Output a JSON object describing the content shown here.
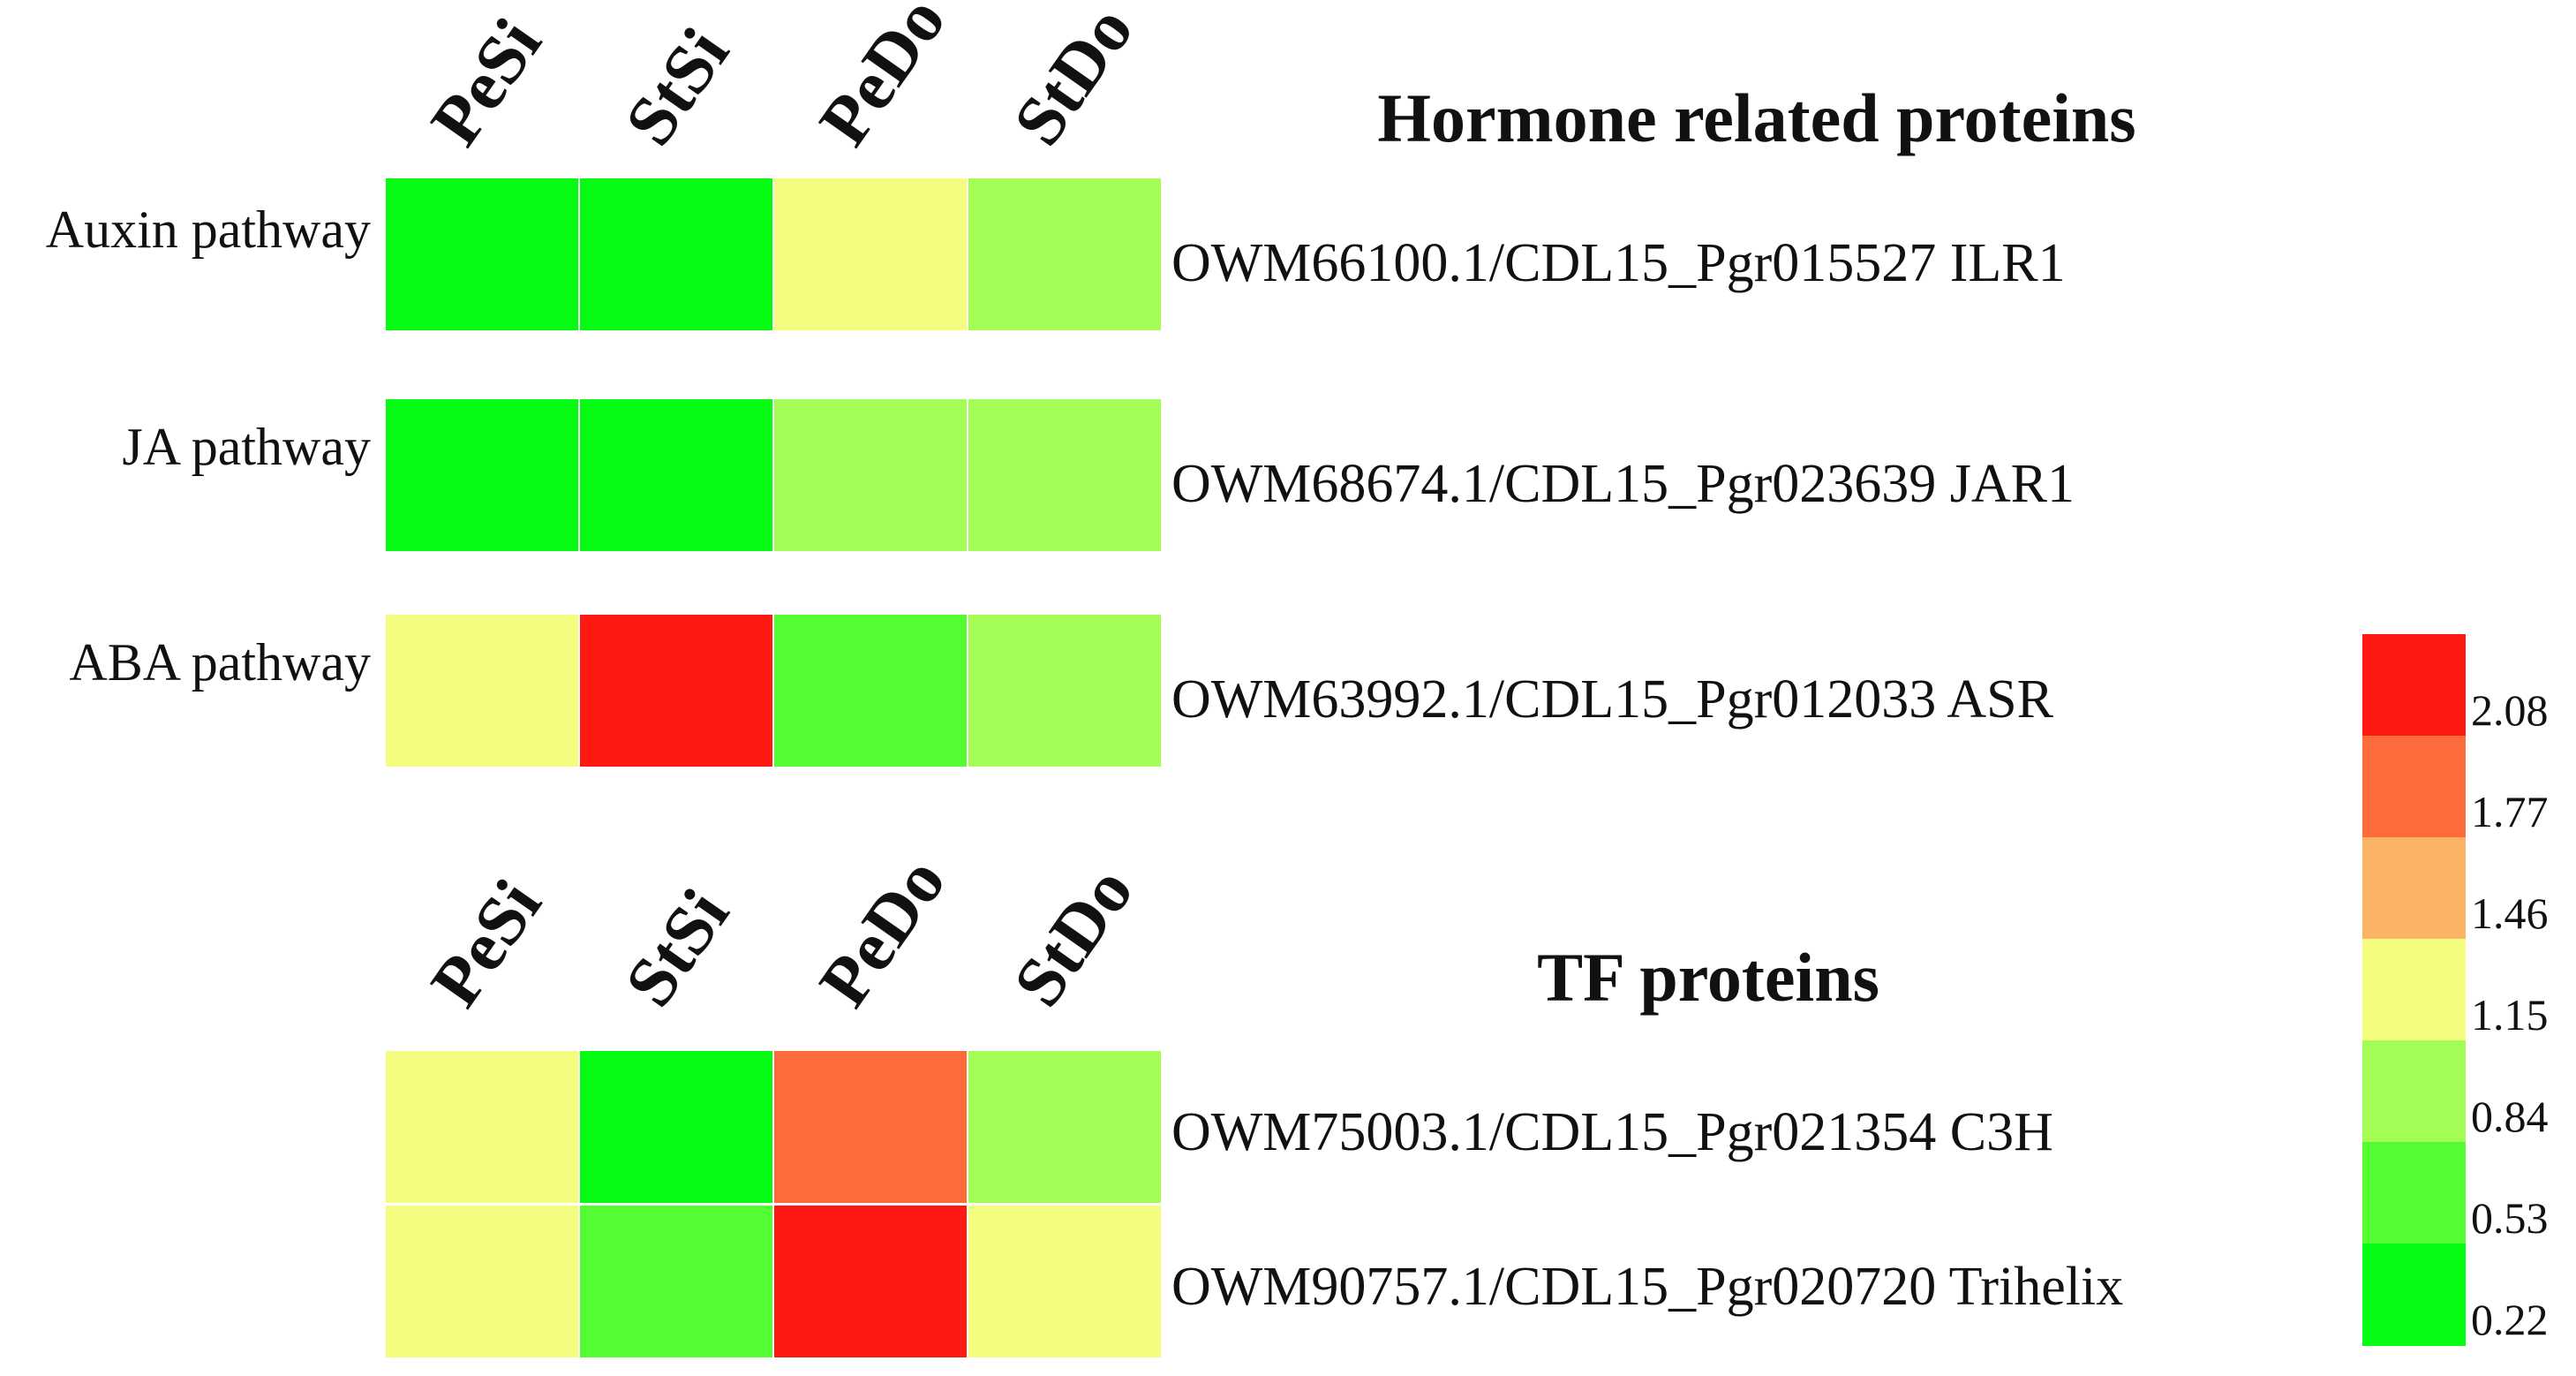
{
  "chart_data": {
    "type": "heatmap",
    "colorscale": {
      "ticks": [
        "2.08",
        "1.77",
        "1.46",
        "1.15",
        "0.84",
        "0.53",
        "0.22"
      ],
      "colors": [
        "#fe1a13",
        "#fd6a3b",
        "#fdb366",
        "#f4fd80",
        "#a3fd55",
        "#53fd32",
        "#06fb13"
      ]
    },
    "panels": [
      {
        "title": "Hormone related proteins",
        "columns": [
          "PeSi",
          "StSi",
          "PeDo",
          "StDo"
        ],
        "rows": [
          {
            "pathway": "Auxin pathway",
            "protein": "OWM66100.1/CDL15_Pgr015527 ILR1",
            "values": [
              0.22,
              0.22,
              1.15,
              0.84
            ]
          },
          {
            "pathway": "JA pathway",
            "protein": "OWM68674.1/CDL15_Pgr023639 JAR1",
            "values": [
              0.22,
              0.22,
              0.84,
              0.84
            ]
          },
          {
            "pathway": "ABA pathway",
            "protein": "OWM63992.1/CDL15_Pgr012033 ASR",
            "values": [
              1.15,
              2.08,
              0.53,
              0.84
            ]
          }
        ]
      },
      {
        "title": "TF proteins",
        "columns": [
          "PeSi",
          "StSi",
          "PeDo",
          "StDo"
        ],
        "rows": [
          {
            "pathway": "",
            "protein": "OWM75003.1/CDL15_Pgr021354 C3H",
            "values": [
              1.15,
              0.22,
              1.77,
              0.84
            ]
          },
          {
            "pathway": "",
            "protein": "OWM90757.1/CDL15_Pgr020720 Trihelix",
            "values": [
              1.15,
              0.53,
              2.08,
              1.15
            ]
          }
        ]
      }
    ]
  }
}
